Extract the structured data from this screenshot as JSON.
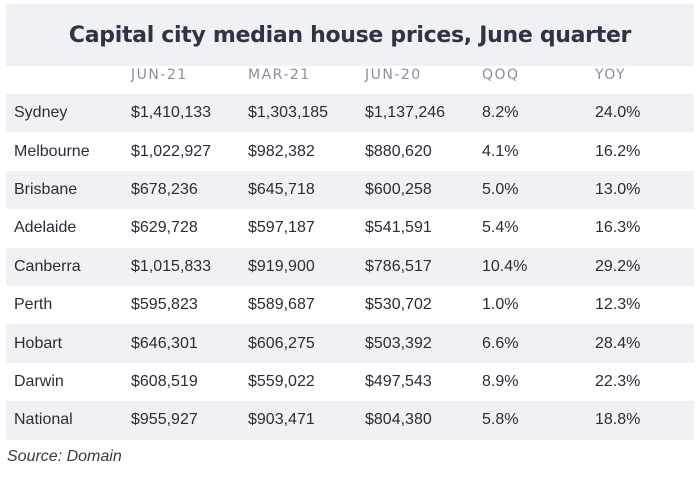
{
  "title": "Capital city median house prices, June quarter",
  "columns": [
    "",
    "JUN-21",
    "MAR-21",
    "JUN-20",
    "QOQ",
    "YOY"
  ],
  "rows": [
    [
      "Sydney",
      "$1,410,133",
      "$1,303,185",
      "$1,137,246",
      "8.2%",
      "24.0%"
    ],
    [
      "Melbourne",
      "$1,022,927",
      "$982,382",
      "$880,620",
      "4.1%",
      "16.2%"
    ],
    [
      "Brisbane",
      "$678,236",
      "$645,718",
      "$600,258",
      "5.0%",
      "13.0%"
    ],
    [
      "Adelaide",
      "$629,728",
      "$597,187",
      "$541,591",
      "5.4%",
      "16.3%"
    ],
    [
      "Canberra",
      "$1,015,833",
      "$919,900",
      "$786,517",
      "10.4%",
      "29.2%"
    ],
    [
      "Perth",
      "$595,823",
      "$589,687",
      "$530,702",
      "1.0%",
      "12.3%"
    ],
    [
      "Hobart",
      "$646,301",
      "$606,275",
      "$503,392",
      "6.6%",
      "28.4%"
    ],
    [
      "Darwin",
      "$608,519",
      "$559,022",
      "$497,543",
      "8.9%",
      "22.3%"
    ],
    [
      "National",
      "$955,927",
      "$903,471",
      "$804,380",
      "5.8%",
      "18.8%"
    ]
  ],
  "source": "Source: Domain"
}
